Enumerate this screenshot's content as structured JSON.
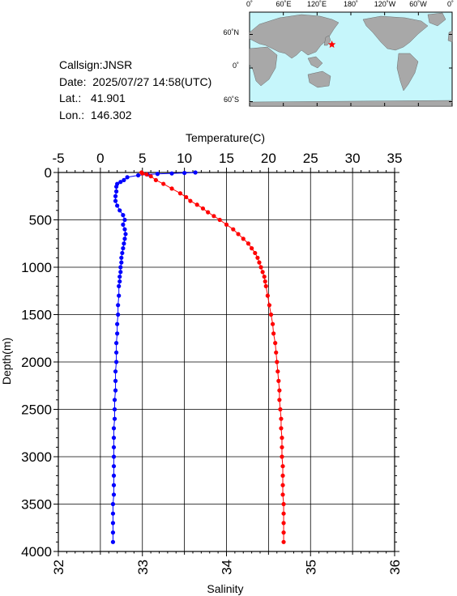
{
  "info": {
    "callsign": "Callsign:JNSR",
    "date": "Date:  2025/07/27 14:58(UTC)",
    "lat": "Lat.:   41.901",
    "lon": "Lon.:  146.302"
  },
  "map": {
    "lon_labels": [
      "0˚",
      "60˚E",
      "120˚E",
      "180˚",
      "120˚W",
      "60˚W",
      "0˚"
    ],
    "lat_labels": [
      "60˚N",
      "0˚",
      "60˚S"
    ],
    "ocean_color": "#c6f6fb",
    "land_color": "#a8a8a8",
    "marker": {
      "lon": 146.302,
      "lat": 41.901,
      "color": "#ff0000"
    }
  },
  "chart_data": {
    "type": "line",
    "ylabel": "Depth(m)",
    "ylim": [
      0,
      4000
    ],
    "yticks": [
      0,
      500,
      1000,
      1500,
      2000,
      2500,
      3000,
      3500,
      4000
    ],
    "y_inverted": true,
    "grid": true,
    "top_axis": {
      "label": "Temperature(C)",
      "lim": [
        -5,
        35
      ],
      "ticks": [
        -5,
        0,
        5,
        10,
        15,
        20,
        25,
        30,
        35
      ],
      "tick_labels": [
        "-5",
        "0",
        "5",
        "10",
        "15",
        "20",
        "25",
        "30",
        "35"
      ]
    },
    "bottom_axis": {
      "label": "Salinity",
      "lim": [
        32,
        36
      ],
      "ticks": [
        32,
        33,
        34,
        35,
        36
      ],
      "tick_labels": [
        "32",
        "33",
        "34",
        "35",
        "36"
      ]
    },
    "series": [
      {
        "axis": "top",
        "color": "#0000ff",
        "points": [
          [
            11.3,
            0
          ],
          [
            10.0,
            5
          ],
          [
            8.5,
            10
          ],
          [
            6.8,
            15
          ],
          [
            5.6,
            20
          ],
          [
            4.5,
            30
          ],
          [
            3.2,
            50
          ],
          [
            2.8,
            80
          ],
          [
            2.4,
            100
          ],
          [
            2.0,
            120
          ],
          [
            1.9,
            150
          ],
          [
            1.9,
            200
          ],
          [
            1.8,
            250
          ],
          [
            1.8,
            300
          ],
          [
            2.0,
            350
          ],
          [
            2.3,
            400
          ],
          [
            2.7,
            450
          ],
          [
            2.9,
            500
          ],
          [
            2.7,
            550
          ],
          [
            2.9,
            600
          ],
          [
            3.0,
            650
          ],
          [
            2.9,
            700
          ],
          [
            2.8,
            750
          ],
          [
            2.7,
            800
          ],
          [
            2.6,
            850
          ],
          [
            2.5,
            900
          ],
          [
            2.5,
            950
          ],
          [
            2.4,
            1000
          ],
          [
            2.4,
            1050
          ],
          [
            2.3,
            1100
          ],
          [
            2.3,
            1150
          ],
          [
            2.2,
            1200
          ],
          [
            2.2,
            1300
          ],
          [
            2.1,
            1400
          ],
          [
            2.1,
            1500
          ],
          [
            2.0,
            1600
          ],
          [
            2.0,
            1700
          ],
          [
            1.9,
            1800
          ],
          [
            1.9,
            1900
          ],
          [
            1.9,
            2000
          ],
          [
            1.8,
            2100
          ],
          [
            1.8,
            2200
          ],
          [
            1.8,
            2300
          ],
          [
            1.7,
            2400
          ],
          [
            1.7,
            2500
          ],
          [
            1.7,
            2600
          ],
          [
            1.6,
            2700
          ],
          [
            1.6,
            2800
          ],
          [
            1.6,
            2900
          ],
          [
            1.6,
            3000
          ],
          [
            1.6,
            3100
          ],
          [
            1.6,
            3200
          ],
          [
            1.6,
            3300
          ],
          [
            1.6,
            3400
          ],
          [
            1.5,
            3500
          ],
          [
            1.5,
            3600
          ],
          [
            1.5,
            3700
          ],
          [
            1.5,
            3800
          ],
          [
            1.5,
            3900
          ]
        ]
      },
      {
        "axis": "bottom",
        "color": "#ff0000",
        "points": [
          [
            32.99,
            0
          ],
          [
            33.0,
            10
          ],
          [
            33.05,
            20
          ],
          [
            33.1,
            40
          ],
          [
            33.16,
            80
          ],
          [
            33.25,
            120
          ],
          [
            33.35,
            170
          ],
          [
            33.45,
            220
          ],
          [
            33.52,
            260
          ],
          [
            33.57,
            300
          ],
          [
            33.65,
            340
          ],
          [
            33.72,
            380
          ],
          [
            33.78,
            420
          ],
          [
            33.85,
            460
          ],
          [
            33.92,
            500
          ],
          [
            34.0,
            550
          ],
          [
            34.08,
            600
          ],
          [
            34.14,
            650
          ],
          [
            34.2,
            700
          ],
          [
            34.26,
            750
          ],
          [
            34.3,
            800
          ],
          [
            34.34,
            850
          ],
          [
            34.37,
            900
          ],
          [
            34.39,
            950
          ],
          [
            34.41,
            1000
          ],
          [
            34.43,
            1050
          ],
          [
            34.45,
            1100
          ],
          [
            34.46,
            1150
          ],
          [
            34.47,
            1200
          ],
          [
            34.49,
            1300
          ],
          [
            34.51,
            1400
          ],
          [
            34.53,
            1500
          ],
          [
            34.55,
            1600
          ],
          [
            34.56,
            1700
          ],
          [
            34.58,
            1800
          ],
          [
            34.59,
            1900
          ],
          [
            34.6,
            2000
          ],
          [
            34.61,
            2100
          ],
          [
            34.62,
            2200
          ],
          [
            34.63,
            2300
          ],
          [
            34.63,
            2400
          ],
          [
            34.64,
            2500
          ],
          [
            34.65,
            2600
          ],
          [
            34.65,
            2700
          ],
          [
            34.66,
            2800
          ],
          [
            34.66,
            2900
          ],
          [
            34.66,
            3000
          ],
          [
            34.67,
            3100
          ],
          [
            34.67,
            3200
          ],
          [
            34.67,
            3300
          ],
          [
            34.67,
            3400
          ],
          [
            34.68,
            3500
          ],
          [
            34.68,
            3600
          ],
          [
            34.68,
            3700
          ],
          [
            34.68,
            3800
          ],
          [
            34.68,
            3900
          ]
        ]
      }
    ]
  }
}
